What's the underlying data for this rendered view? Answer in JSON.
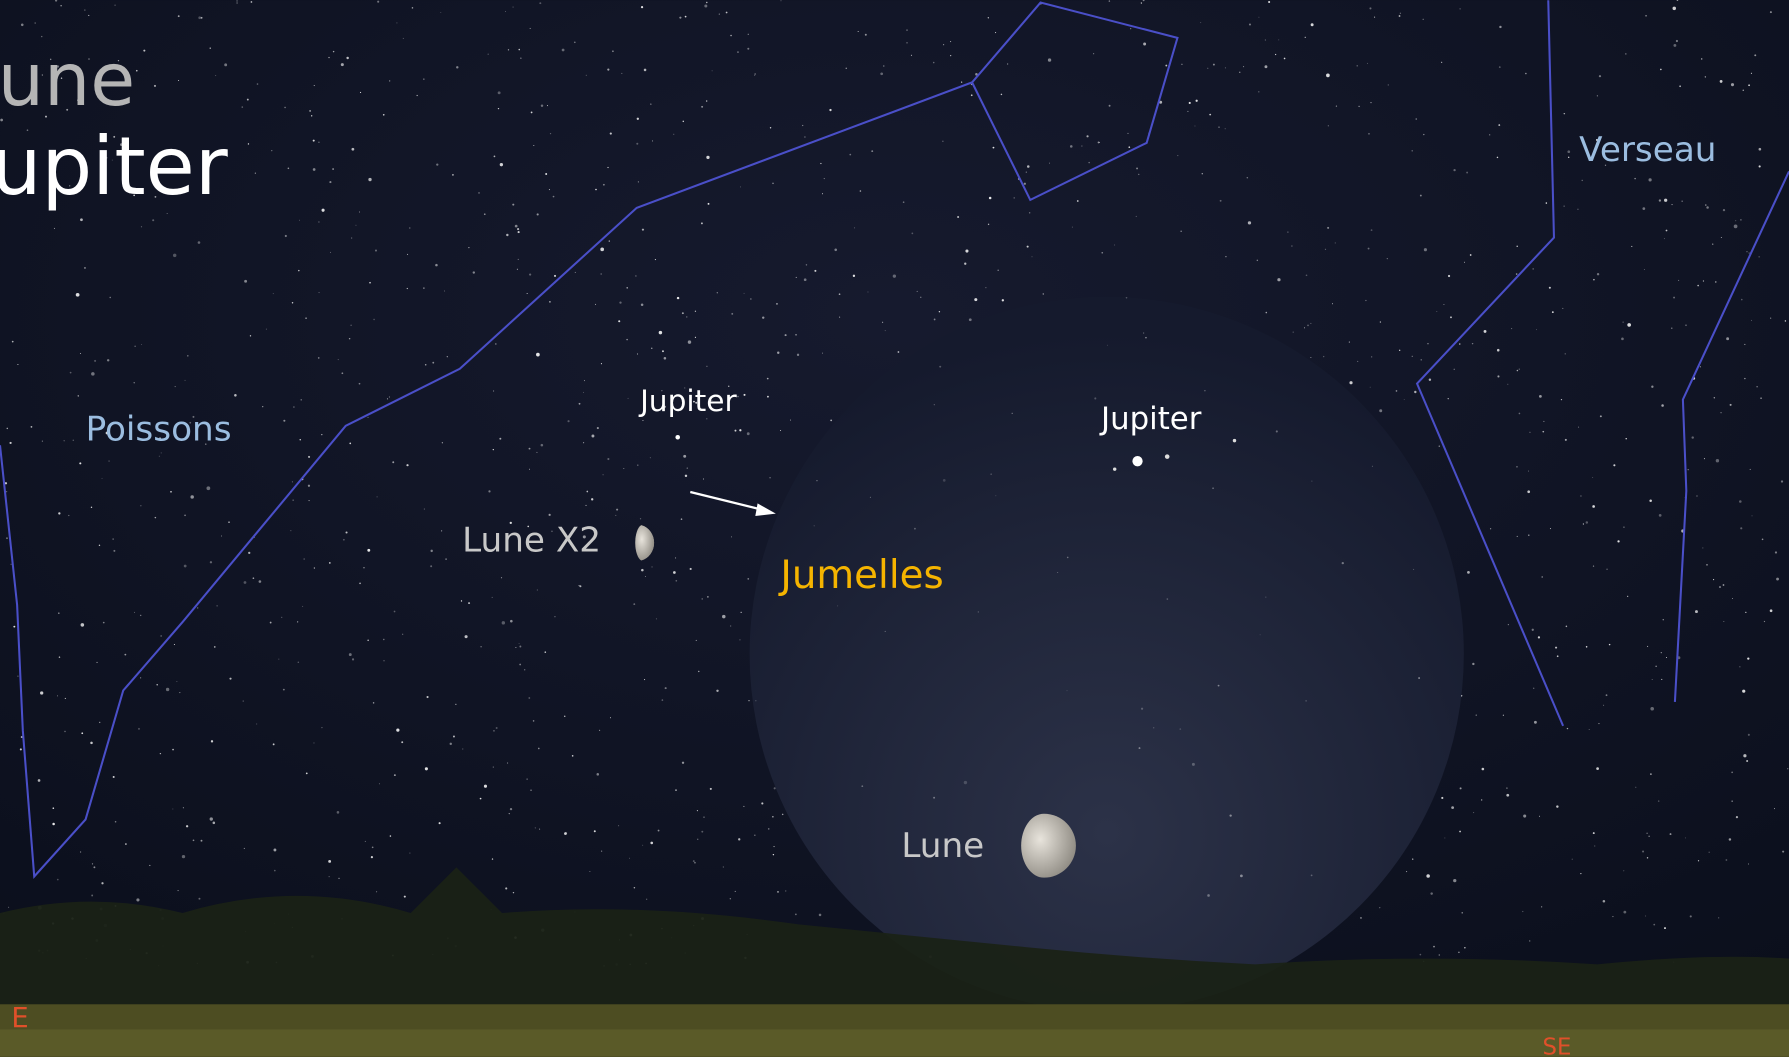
{
  "title": {
    "line1": "une",
    "line2": "upiter"
  },
  "constellations": {
    "left": "Poissons",
    "right": "Verseau"
  },
  "sky": {
    "jupiter": "Jupiter",
    "moon": "Lune X2"
  },
  "binoculars": {
    "label": "Jumelles",
    "jupiter": "Jupiter",
    "moon": "Lune"
  },
  "compass": {
    "east": "E",
    "southeast": "SE"
  }
}
